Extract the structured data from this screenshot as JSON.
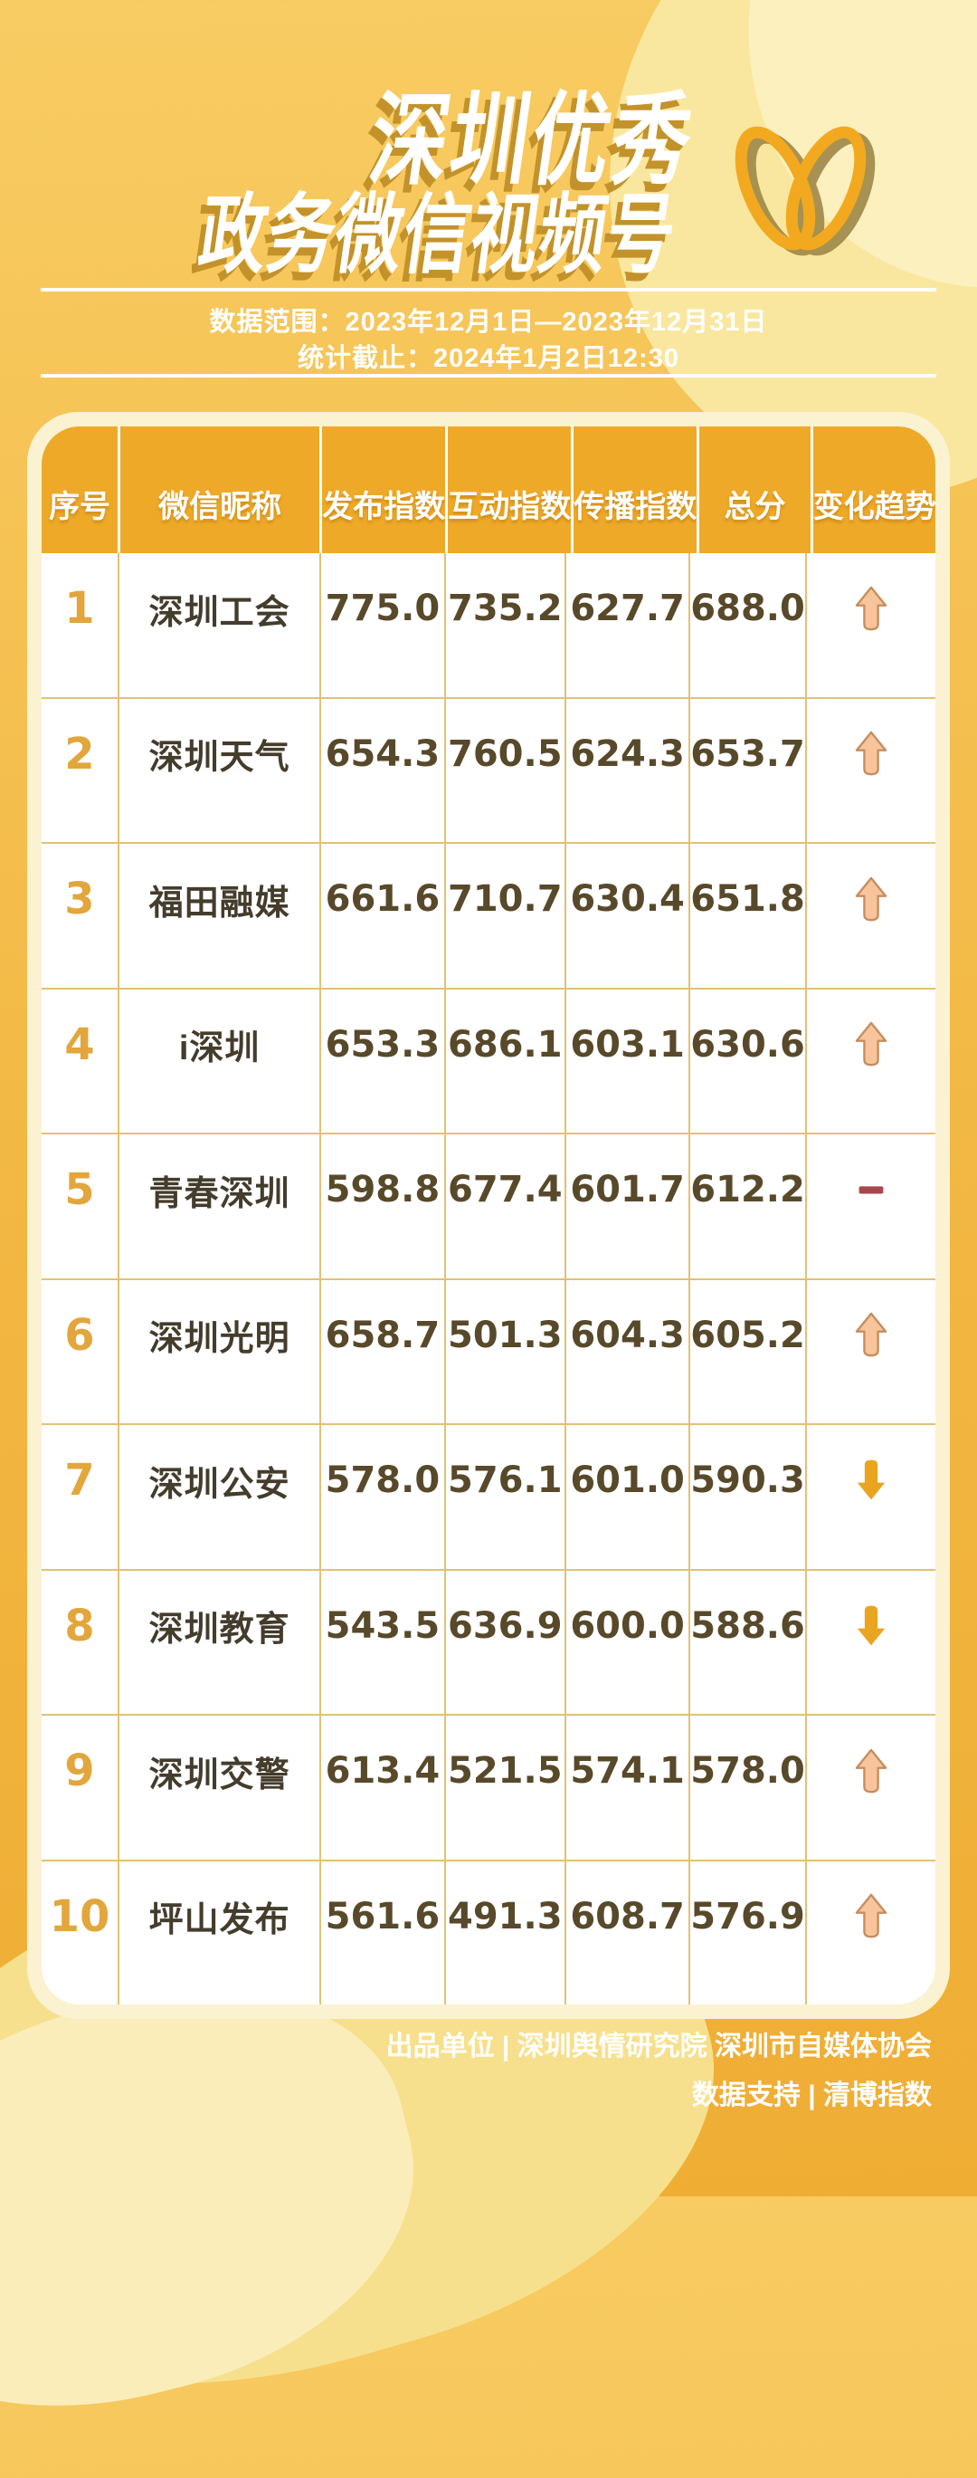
{
  "title": {
    "line1": "深圳优秀",
    "line2": "政务微信视频号"
  },
  "meta": {
    "range": "数据范围：2023年12月1日—2023年12月31日",
    "cutoff": "统计截止：2024年1月2日12:30"
  },
  "chart_data": {
    "type": "table",
    "title": "深圳优秀政务微信视频号",
    "columns": [
      "序号",
      "微信昵称",
      "发布指数",
      "互动指数",
      "传播指数",
      "总分",
      "变化趋势"
    ],
    "rows": [
      {
        "rank": "1",
        "name": "深圳工会",
        "publish": "775.0",
        "interact": "735.2",
        "spread": "627.7",
        "total": "688.0",
        "trend": "up"
      },
      {
        "rank": "2",
        "name": "深圳天气",
        "publish": "654.3",
        "interact": "760.5",
        "spread": "624.3",
        "total": "653.7",
        "trend": "up"
      },
      {
        "rank": "3",
        "name": "福田融媒",
        "publish": "661.6",
        "interact": "710.7",
        "spread": "630.4",
        "total": "651.8",
        "trend": "up"
      },
      {
        "rank": "4",
        "name": "i深圳",
        "publish": "653.3",
        "interact": "686.1",
        "spread": "603.1",
        "total": "630.6",
        "trend": "up"
      },
      {
        "rank": "5",
        "name": "青春深圳",
        "publish": "598.8",
        "interact": "677.4",
        "spread": "601.7",
        "total": "612.2",
        "trend": "flat"
      },
      {
        "rank": "6",
        "name": "深圳光明",
        "publish": "658.7",
        "interact": "501.3",
        "spread": "604.3",
        "total": "605.2",
        "trend": "up"
      },
      {
        "rank": "7",
        "name": "深圳公安",
        "publish": "578.0",
        "interact": "576.1",
        "spread": "601.0",
        "total": "590.3",
        "trend": "down"
      },
      {
        "rank": "8",
        "name": "深圳教育",
        "publish": "543.5",
        "interact": "636.9",
        "spread": "600.0",
        "total": "588.6",
        "trend": "down"
      },
      {
        "rank": "9",
        "name": "深圳交警",
        "publish": "613.4",
        "interact": "521.5",
        "spread": "574.1",
        "total": "578.0",
        "trend": "up"
      },
      {
        "rank": "10",
        "name": "坪山发布",
        "publish": "561.6",
        "interact": "491.3",
        "spread": "608.7",
        "total": "576.9",
        "trend": "up"
      }
    ]
  },
  "footer": {
    "line1": "出品单位 | 深圳舆情研究院 深圳市自媒体协会",
    "line2": "数据支持 | 清博指数"
  },
  "icons": {
    "logo": "wechat-channels-logo",
    "trend_up": "up-arrow-icon",
    "trend_down": "down-arrow-icon",
    "trend_flat": "flat-dash-icon"
  },
  "colors": {
    "accent": "#EFA928",
    "card_cream": "#FBF2D2",
    "grid_gold": "#E2C173",
    "rank_gold": "#E2A63C",
    "trend_up": "#F7C49C",
    "trend_up_edge": "#C68D5E",
    "trend_down": "#E9A420",
    "trend_flat": "#A4494D",
    "title_shadow": "#C3922A"
  }
}
